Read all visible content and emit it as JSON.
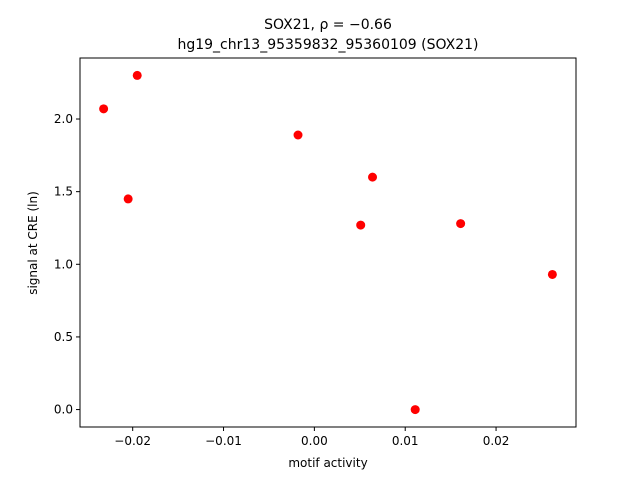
{
  "chart_data": {
    "type": "scatter",
    "title_line1": "SOX21, ρ = −0.66",
    "title_line2": "hg19_chr13_95359832_95360109 (SOX21)",
    "xlabel": "motif activity",
    "ylabel": "signal at CRE (ln)",
    "xlim": [
      -0.0258,
      0.0288
    ],
    "ylim": [
      -0.12,
      2.42
    ],
    "xticks": [
      -0.02,
      -0.01,
      0.0,
      0.01,
      0.02
    ],
    "xtick_labels": [
      "−0.02",
      "−0.01",
      "0.00",
      "0.01",
      "0.02"
    ],
    "yticks": [
      0.0,
      0.5,
      1.0,
      1.5,
      2.0
    ],
    "ytick_labels": [
      "0.0",
      "0.5",
      "1.0",
      "1.5",
      "2.0"
    ],
    "grid": false,
    "marker_color": "#ff0000",
    "points": [
      {
        "x": -0.0232,
        "y": 2.07
      },
      {
        "x": -0.0195,
        "y": 2.3
      },
      {
        "x": -0.0205,
        "y": 1.45
      },
      {
        "x": -0.0018,
        "y": 1.89
      },
      {
        "x": 0.0064,
        "y": 1.6
      },
      {
        "x": 0.0051,
        "y": 1.27
      },
      {
        "x": 0.0161,
        "y": 1.28
      },
      {
        "x": 0.0262,
        "y": 0.93
      },
      {
        "x": 0.0111,
        "y": 0.0
      }
    ]
  }
}
